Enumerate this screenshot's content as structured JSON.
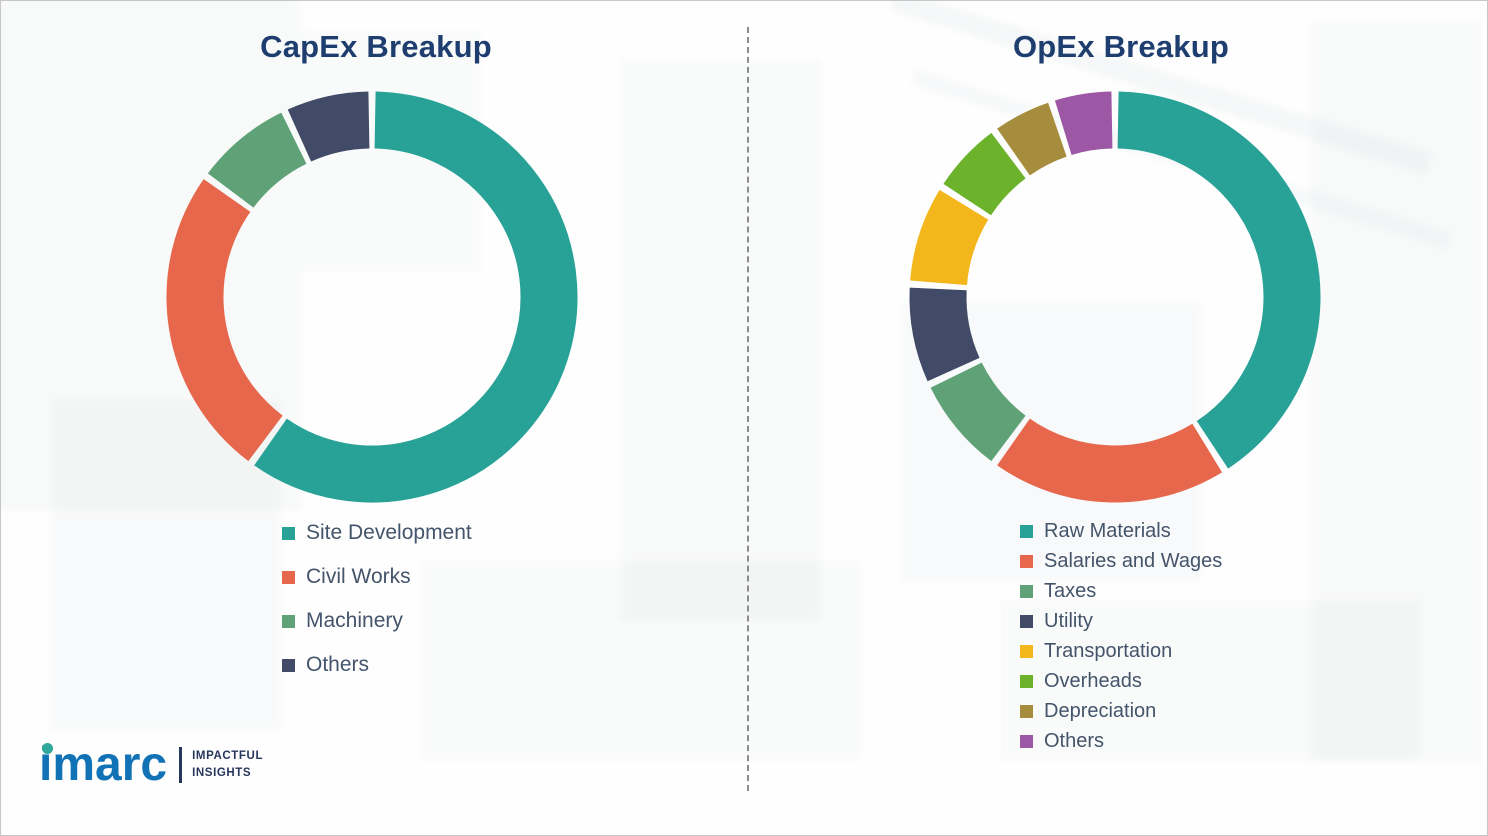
{
  "logo": {
    "brand": "imarc",
    "tagline_line1": "IMPACTFUL",
    "tagline_line2": "INSIGHTS"
  },
  "chart_data": [
    {
      "type": "pie",
      "subtype": "donut",
      "title": "CapEx Breakup",
      "labels": [
        "Site Development",
        "Civil Works",
        "Machinery",
        "Others"
      ],
      "values": [
        60,
        25,
        8,
        7
      ],
      "colors": [
        "#28a297",
        "#e6674b",
        "#60a277",
        "#414a67"
      ],
      "legend_position": "below-left",
      "start_angle_deg": -90,
      "direction": "clockwise"
    },
    {
      "type": "pie",
      "subtype": "donut",
      "title": "OpEx Breakup",
      "labels": [
        "Raw Materials",
        "Salaries and Wages",
        "Taxes",
        "Utility",
        "Transportation",
        "Overheads",
        "Depreciation",
        "Others"
      ],
      "values": [
        41,
        19,
        8,
        8,
        8,
        6,
        5,
        5
      ],
      "colors": [
        "#28a297",
        "#e6674b",
        "#60a277",
        "#414a67",
        "#f3b71c",
        "#6cb32b",
        "#a68c3d",
        "#9c57a5"
      ],
      "legend_position": "below-left",
      "start_angle_deg": -90,
      "direction": "clockwise"
    }
  ]
}
